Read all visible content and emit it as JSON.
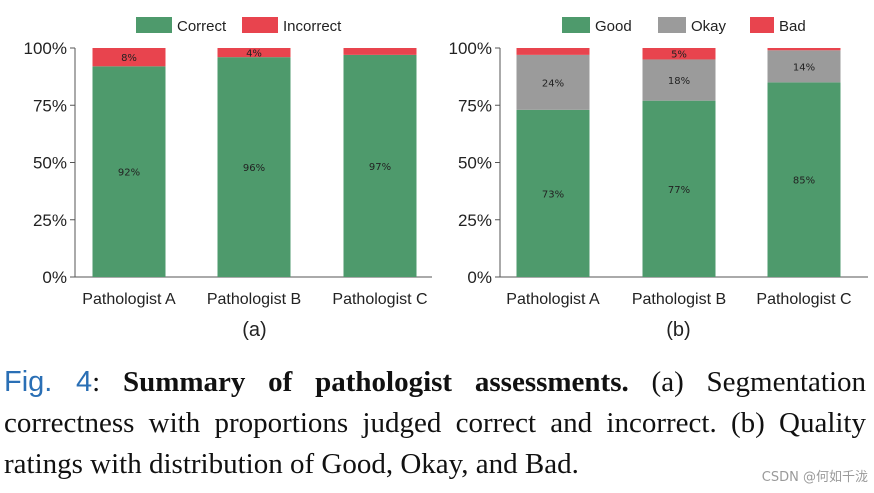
{
  "chart_data": [
    {
      "type": "bar",
      "stacked": true,
      "panel_label": "(a)",
      "categories": [
        "Pathologist A",
        "Pathologist B",
        "Pathologist C"
      ],
      "series": [
        {
          "name": "Correct",
          "color": "#4e9a6c",
          "values": [
            92,
            96,
            97
          ],
          "labels": [
            "92%",
            "96%",
            "97%"
          ]
        },
        {
          "name": "Incorrect",
          "color": "#e8444e",
          "values": [
            8,
            4,
            3
          ],
          "labels": [
            "8%",
            "4%",
            ""
          ]
        }
      ],
      "yticks": [
        "0%",
        "25%",
        "50%",
        "75%",
        "100%"
      ],
      "ylim": [
        0,
        100
      ],
      "legend": "top"
    },
    {
      "type": "bar",
      "stacked": true,
      "panel_label": "(b)",
      "categories": [
        "Pathologist A",
        "Pathologist B",
        "Pathologist C"
      ],
      "series": [
        {
          "name": "Good",
          "color": "#4e9a6c",
          "values": [
            73,
            77,
            85
          ],
          "labels": [
            "73%",
            "77%",
            "85%"
          ]
        },
        {
          "name": "Okay",
          "color": "#9b9b9b",
          "values": [
            24,
            18,
            14
          ],
          "labels": [
            "24%",
            "18%",
            "14%"
          ]
        },
        {
          "name": "Bad",
          "color": "#e8444e",
          "values": [
            3,
            5,
            1
          ],
          "labels": [
            "",
            "5%",
            ""
          ]
        }
      ],
      "yticks": [
        "0%",
        "25%",
        "50%",
        "75%",
        "100%"
      ],
      "ylim": [
        0,
        100
      ],
      "legend": "top"
    }
  ],
  "caption": {
    "label": "Fig. 4",
    "bold": "Summary of pathologist assessments.",
    "text": " (a) Segmentation correctness with proportions judged correct and incorrect. (b) Quality ratings with distribution of Good, Okay, and Bad."
  },
  "watermark": "CSDN @何如千泷"
}
